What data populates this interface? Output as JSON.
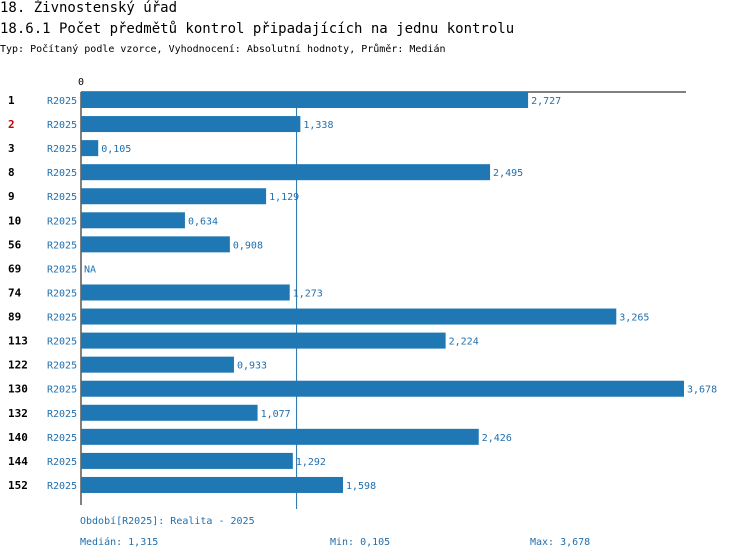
{
  "header": {
    "title": "18. Živnostenský úřad",
    "subtitle": "18.6.1 Počet předmětů kontrol připadajících na jednu kontrolu",
    "type_line": "Typ: Počítaný podle vzorce, Vyhodnocení: Absolutní hodnoty, Průměr: Medián"
  },
  "chart_data": {
    "type": "bar",
    "orientation": "horizontal",
    "axis_zero_label": "0",
    "xlim": [
      0,
      3.678
    ],
    "median": 1.315,
    "highlight_category": "2",
    "highlight_color": "#cc0000",
    "bar_color": "#1f77b4",
    "label_color": "#1f6fae",
    "series_label": "R2025",
    "categories": [
      "1",
      "2",
      "3",
      "8",
      "9",
      "10",
      "56",
      "69",
      "74",
      "89",
      "113",
      "122",
      "130",
      "132",
      "140",
      "144",
      "152"
    ],
    "values": [
      2.727,
      1.338,
      0.105,
      2.495,
      1.129,
      0.634,
      0.908,
      null,
      1.273,
      3.265,
      2.224,
      0.933,
      3.678,
      1.077,
      2.426,
      1.292,
      1.598
    ],
    "value_labels": [
      "2,727",
      "1,338",
      "0,105",
      "2,495",
      "1,129",
      "0,634",
      "0,908",
      "NA",
      "1,273",
      "3,265",
      "2,224",
      "0,933",
      "3,678",
      "1,077",
      "2,426",
      "1,292",
      "1,598"
    ]
  },
  "footer": {
    "period": "Období[R2025]: Realita - 2025",
    "median": "Medián: 1,315",
    "min": "Min: 0,105",
    "max": "Max: 3,678"
  }
}
